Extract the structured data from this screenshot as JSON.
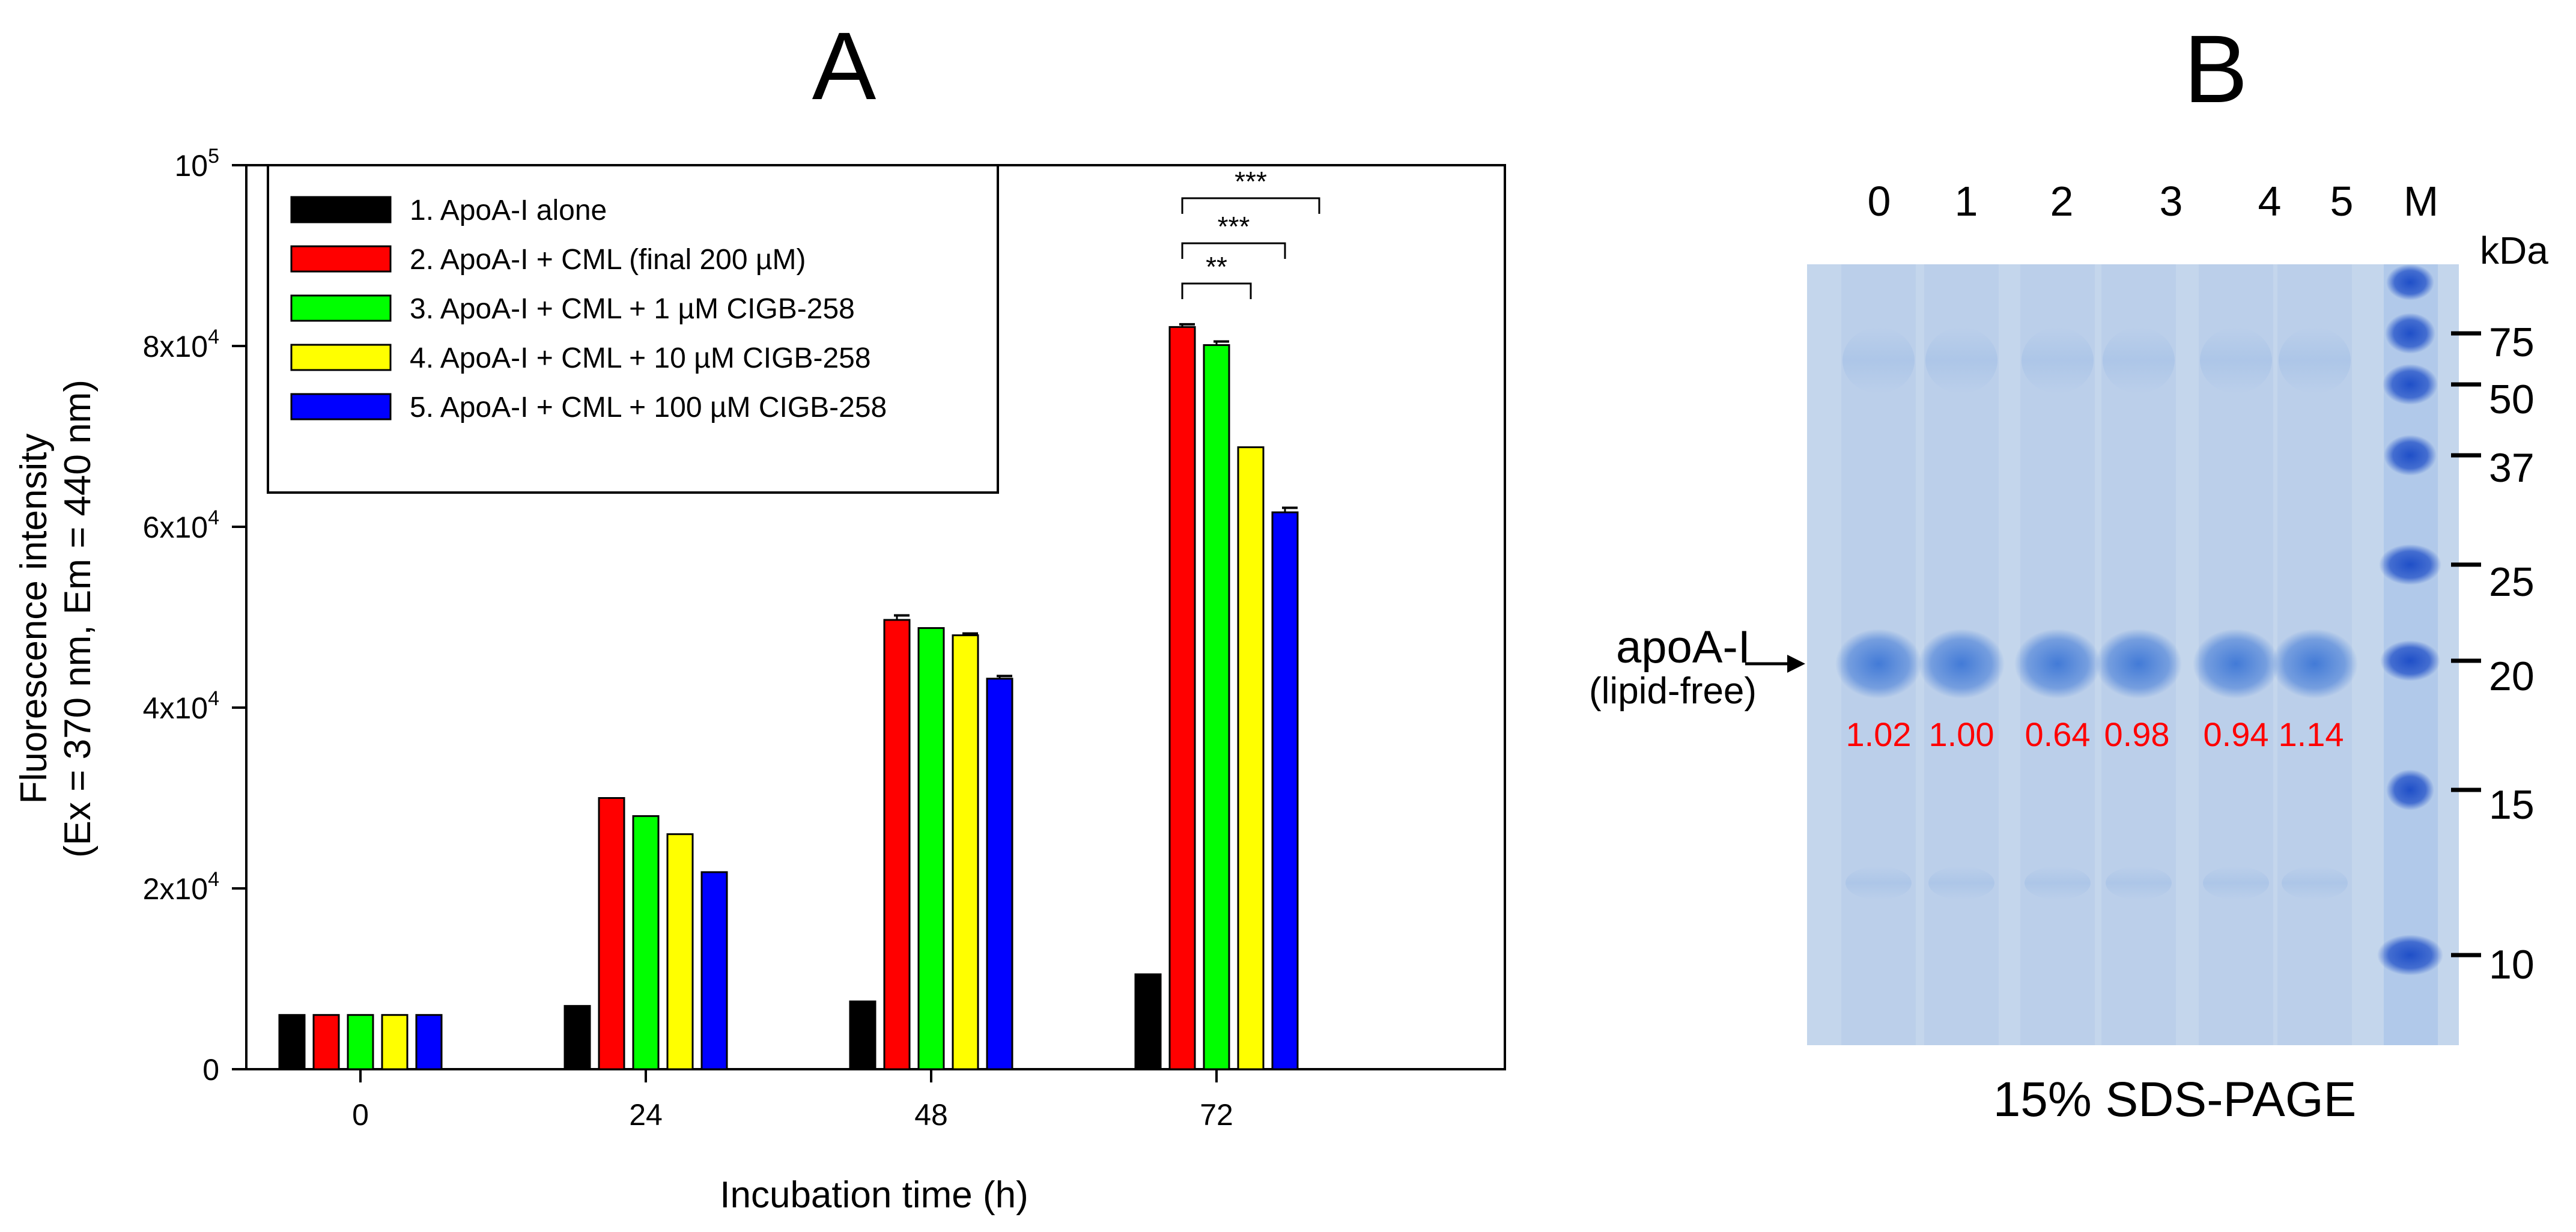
{
  "chart_data": {
    "type": "bar",
    "panel_label": "A",
    "categories": [
      "0",
      "24",
      "48",
      "72"
    ],
    "xlabel": "Incubation time (h)",
    "ylabel_line1": "Fluorescence intensity",
    "ylabel_line2": "(Ex = 370 nm, Em = 440 nm)",
    "ylim": [
      0,
      100000
    ],
    "yticks": [
      {
        "value": 0,
        "base": "0",
        "exp": ""
      },
      {
        "value": 20000,
        "base": "2x10",
        "exp": "4"
      },
      {
        "value": 40000,
        "base": "4x10",
        "exp": "4"
      },
      {
        "value": 60000,
        "base": "6x10",
        "exp": "4"
      },
      {
        "value": 80000,
        "base": "8x10",
        "exp": "4"
      },
      {
        "value": 100000,
        "base": "10",
        "exp": "5"
      }
    ],
    "series": [
      {
        "name": "1. ApoA-I alone",
        "color": "#000000",
        "values": [
          6000,
          7000,
          7500,
          10500
        ],
        "errors": [
          0,
          0,
          0,
          0
        ]
      },
      {
        "name": "2. ApoA-I + CML (final 200 µM)",
        "color": "#ff0000",
        "values": [
          6000,
          30000,
          49700,
          82100
        ],
        "errors": [
          0,
          0,
          500,
          300
        ]
      },
      {
        "name": "3. ApoA-I + CML + 1 µM CIGB-258",
        "color": "#00ff00",
        "values": [
          6000,
          28000,
          48800,
          80100
        ],
        "errors": [
          0,
          0,
          0,
          400
        ]
      },
      {
        "name": "4. ApoA-I + CML + 10 µM CIGB-258",
        "color": "#ffff00",
        "values": [
          6000,
          26000,
          48000,
          68800
        ],
        "errors": [
          0,
          0,
          200,
          0
        ]
      },
      {
        "name": "5. ApoA-I + CML + 100 µM CIGB-258",
        "color": "#0000ff",
        "values": [
          6000,
          21800,
          43200,
          61600
        ],
        "errors": [
          0,
          0,
          300,
          500
        ]
      }
    ],
    "significance": [
      {
        "category": "72",
        "from_series": 1,
        "to_series": 3,
        "label": "**"
      },
      {
        "category": "72",
        "from_series": 1,
        "to_series": 4,
        "label": "***"
      },
      {
        "category": "72",
        "from_series": 1,
        "to_series": 5,
        "label": "***"
      }
    ],
    "legend_position": "top-left"
  },
  "gel": {
    "panel_label": "B",
    "lanes": [
      "0",
      "1",
      "2",
      "3",
      "4",
      "5",
      "M"
    ],
    "unit": "kDa",
    "markers": [
      "75",
      "50",
      "37",
      "25",
      "20",
      "15",
      "10"
    ],
    "protein_label": "apoA-I",
    "protein_sublabel": "(lipid-free)",
    "quantification": [
      "1.02",
      "1.00",
      "0.64",
      "0.98",
      "0.94",
      "1.14"
    ],
    "caption": "15% SDS-PAGE",
    "background_color": "#c4d6ec",
    "band_color": "#3c76d6",
    "marker_color": "#1f4fc8",
    "quant_color": "#ff0000"
  }
}
